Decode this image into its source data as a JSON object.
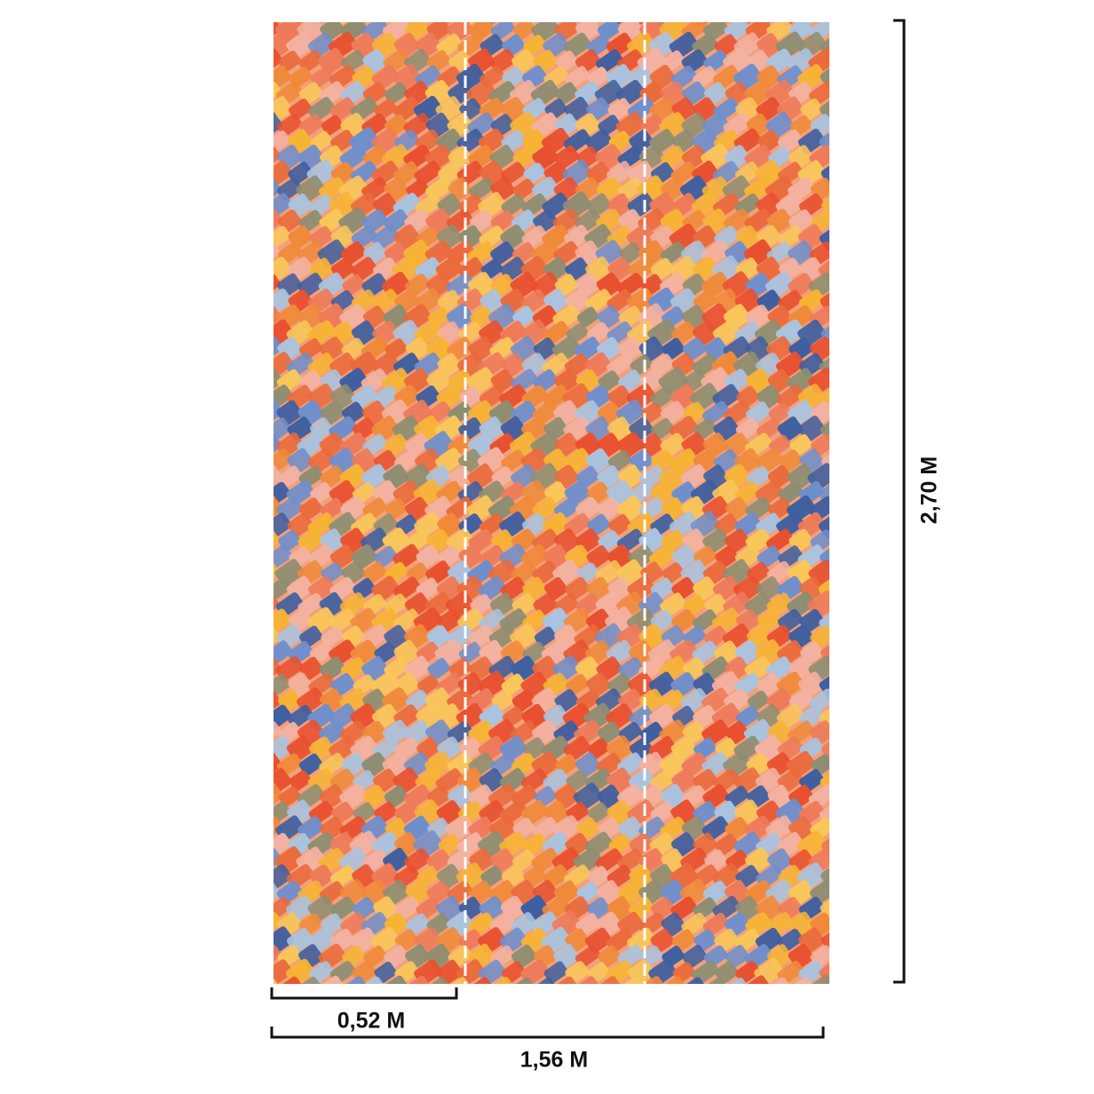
{
  "panel_width_label": "0,52 M",
  "total_width_label": "1,56 M",
  "height_label": "2,70 M"
}
